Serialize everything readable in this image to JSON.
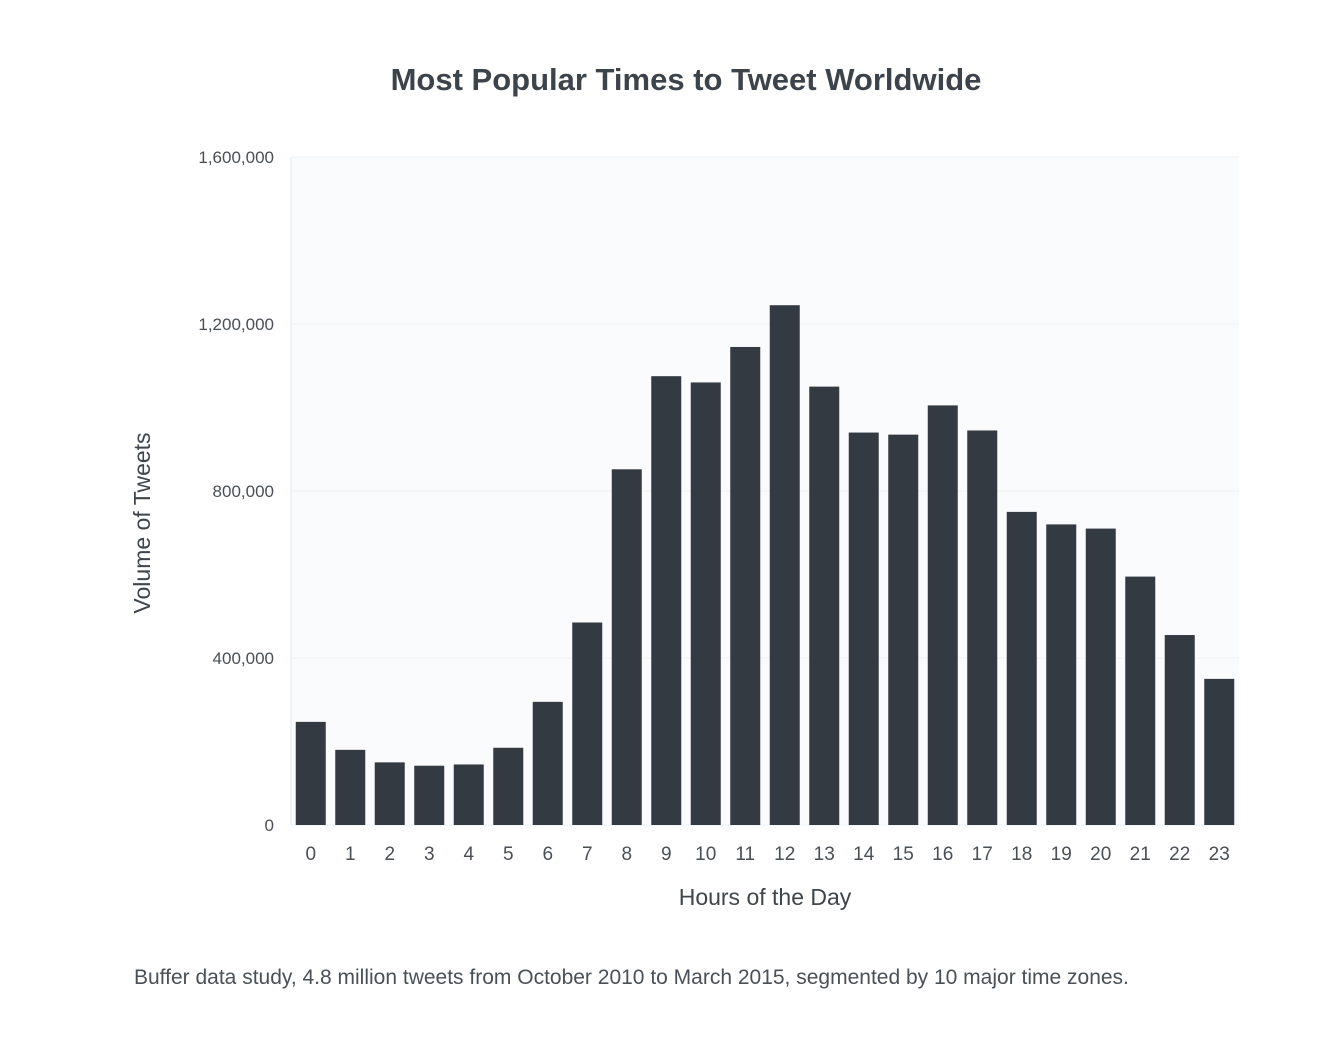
{
  "caption": "Buffer data study, 4.8 million tweets from October 2010 to March 2015, segmented by 10 major time zones.",
  "colors": {
    "bar": "#343a42",
    "plot_bg": "#fafbfd",
    "grid": "#eef0f3",
    "axis_text": "#4a4f55"
  },
  "chart_data": {
    "type": "bar",
    "title": "Most Popular Times to Tweet Worldwide",
    "xlabel": "Hours of the Day",
    "ylabel": "Volume of Tweets",
    "categories": [
      "0",
      "1",
      "2",
      "3",
      "4",
      "5",
      "6",
      "7",
      "8",
      "9",
      "10",
      "11",
      "12",
      "13",
      "14",
      "15",
      "16",
      "17",
      "18",
      "19",
      "20",
      "21",
      "22",
      "23"
    ],
    "values": [
      247000,
      180000,
      150000,
      142000,
      145000,
      185000,
      295000,
      485000,
      852000,
      1075000,
      1060000,
      1145000,
      1245000,
      1050000,
      940000,
      935000,
      1005000,
      945000,
      750000,
      720000,
      710000,
      595000,
      455000,
      350000
    ],
    "ylim": [
      0,
      1600000
    ],
    "yticks": [
      0,
      400000,
      800000,
      1200000,
      1600000
    ],
    "ytick_labels": [
      "0",
      "400,000",
      "800,000",
      "1,200,000",
      "1,600,000"
    ],
    "grid": true
  }
}
